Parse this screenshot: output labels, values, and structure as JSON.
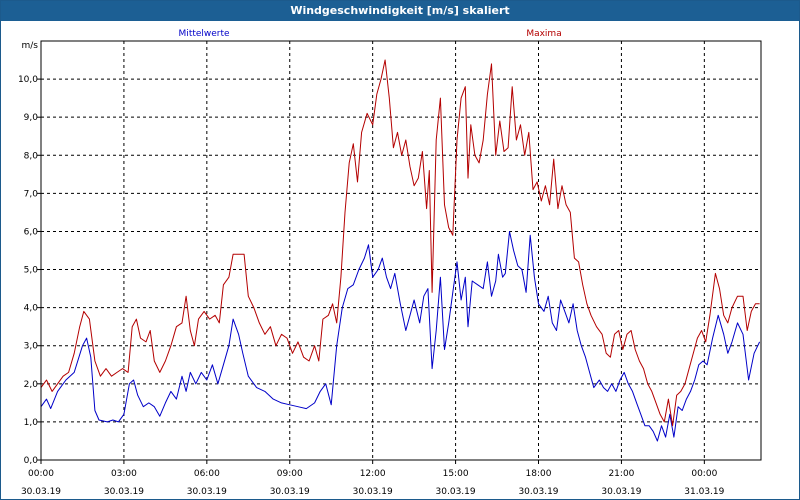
{
  "window": {
    "title": "Windgeschwindigkeit [m/s] skaliert"
  },
  "colors": {
    "series_mean": "#0000c8",
    "series_max": "#b40000",
    "grid": "#000000",
    "title_bg": "#1c5f94"
  },
  "chart_data": {
    "type": "line",
    "title": "Windgeschwindigkeit [m/s] skaliert",
    "ylabel": "m/s",
    "xlabel": "",
    "ylim": [
      0,
      11
    ],
    "xlim_hours": [
      0,
      24
    ],
    "grid": true,
    "yticks": [
      "0,0",
      "1,0",
      "2,0",
      "3,0",
      "4,0",
      "5,0",
      "6,0",
      "7,0",
      "8,0",
      "9,0",
      "10,0"
    ],
    "xticks": [
      {
        "time": "00:00",
        "date": "30.03.19"
      },
      {
        "time": "03:00",
        "date": "30.03.19"
      },
      {
        "time": "06:00",
        "date": "30.03.19"
      },
      {
        "time": "09:00",
        "date": "30.03.19"
      },
      {
        "time": "12:00",
        "date": "30.03.19"
      },
      {
        "time": "15:00",
        "date": "30.03.19"
      },
      {
        "time": "18:00",
        "date": "30.03.19"
      },
      {
        "time": "21:00",
        "date": "30.03.19"
      },
      {
        "time": "00:00",
        "date": "31.03.19"
      }
    ],
    "series": [
      {
        "name": "Mittelwerte",
        "points": [
          [
            0,
            1.4
          ],
          [
            0.2,
            1.6
          ],
          [
            0.35,
            1.35
          ],
          [
            0.6,
            1.8
          ],
          [
            0.9,
            2.1
          ],
          [
            1.2,
            2.3
          ],
          [
            1.5,
            3.0
          ],
          [
            1.65,
            3.2
          ],
          [
            1.8,
            2.7
          ],
          [
            1.95,
            1.3
          ],
          [
            2.1,
            1.05
          ],
          [
            2.4,
            1.0
          ],
          [
            2.6,
            1.05
          ],
          [
            2.8,
            1.0
          ],
          [
            3.0,
            1.2
          ],
          [
            3.2,
            2.0
          ],
          [
            3.35,
            2.1
          ],
          [
            3.5,
            1.7
          ],
          [
            3.7,
            1.4
          ],
          [
            3.9,
            1.5
          ],
          [
            4.1,
            1.4
          ],
          [
            4.3,
            1.15
          ],
          [
            4.5,
            1.5
          ],
          [
            4.7,
            1.8
          ],
          [
            4.9,
            1.6
          ],
          [
            5.1,
            2.2
          ],
          [
            5.25,
            1.8
          ],
          [
            5.4,
            2.3
          ],
          [
            5.6,
            2.0
          ],
          [
            5.8,
            2.3
          ],
          [
            6.0,
            2.1
          ],
          [
            6.2,
            2.5
          ],
          [
            6.4,
            2.0
          ],
          [
            6.6,
            2.5
          ],
          [
            6.8,
            3.0
          ],
          [
            6.95,
            3.7
          ],
          [
            7.15,
            3.3
          ],
          [
            7.3,
            2.8
          ],
          [
            7.5,
            2.2
          ],
          [
            7.8,
            1.9
          ],
          [
            8.1,
            1.8
          ],
          [
            8.4,
            1.6
          ],
          [
            8.7,
            1.5
          ],
          [
            9.0,
            1.45
          ],
          [
            9.3,
            1.4
          ],
          [
            9.6,
            1.35
          ],
          [
            9.9,
            1.5
          ],
          [
            10.1,
            1.8
          ],
          [
            10.3,
            2.0
          ],
          [
            10.5,
            1.45
          ],
          [
            10.7,
            3.0
          ],
          [
            10.9,
            4.0
          ],
          [
            11.1,
            4.5
          ],
          [
            11.3,
            4.6
          ],
          [
            11.5,
            5.0
          ],
          [
            11.7,
            5.3
          ],
          [
            11.85,
            5.65
          ],
          [
            12.0,
            4.8
          ],
          [
            12.2,
            5.0
          ],
          [
            12.35,
            5.3
          ],
          [
            12.5,
            4.8
          ],
          [
            12.65,
            4.5
          ],
          [
            12.8,
            4.9
          ],
          [
            13.0,
            4.1
          ],
          [
            13.2,
            3.4
          ],
          [
            13.35,
            3.8
          ],
          [
            13.5,
            4.2
          ],
          [
            13.7,
            3.6
          ],
          [
            13.85,
            4.3
          ],
          [
            14.0,
            4.5
          ],
          [
            14.15,
            2.4
          ],
          [
            14.3,
            3.4
          ],
          [
            14.45,
            4.8
          ],
          [
            14.6,
            2.9
          ],
          [
            14.75,
            3.6
          ],
          [
            14.9,
            4.4
          ],
          [
            15.05,
            5.2
          ],
          [
            15.2,
            4.2
          ],
          [
            15.35,
            4.8
          ],
          [
            15.45,
            3.5
          ],
          [
            15.6,
            4.7
          ],
          [
            15.8,
            4.6
          ],
          [
            16.0,
            4.5
          ],
          [
            16.15,
            5.2
          ],
          [
            16.3,
            4.3
          ],
          [
            16.45,
            4.7
          ],
          [
            16.55,
            5.4
          ],
          [
            16.7,
            4.8
          ],
          [
            16.8,
            4.9
          ],
          [
            16.95,
            6.0
          ],
          [
            17.1,
            5.5
          ],
          [
            17.25,
            5.1
          ],
          [
            17.4,
            5.0
          ],
          [
            17.55,
            4.4
          ],
          [
            17.7,
            5.9
          ],
          [
            17.85,
            4.8
          ],
          [
            18.0,
            4.1
          ],
          [
            18.2,
            3.9
          ],
          [
            18.35,
            4.3
          ],
          [
            18.5,
            3.6
          ],
          [
            18.65,
            3.4
          ],
          [
            18.8,
            4.2
          ],
          [
            18.95,
            3.9
          ],
          [
            19.1,
            3.6
          ],
          [
            19.25,
            4.1
          ],
          [
            19.4,
            3.4
          ],
          [
            19.55,
            3.0
          ],
          [
            19.7,
            2.7
          ],
          [
            19.85,
            2.3
          ],
          [
            20.0,
            1.9
          ],
          [
            20.2,
            2.1
          ],
          [
            20.35,
            1.9
          ],
          [
            20.5,
            1.8
          ],
          [
            20.65,
            2.0
          ],
          [
            20.8,
            1.8
          ],
          [
            20.95,
            2.1
          ],
          [
            21.1,
            2.3
          ],
          [
            21.25,
            2.0
          ],
          [
            21.4,
            1.8
          ],
          [
            21.55,
            1.5
          ],
          [
            21.7,
            1.2
          ],
          [
            21.85,
            0.9
          ],
          [
            22.0,
            0.9
          ],
          [
            22.15,
            0.75
          ],
          [
            22.3,
            0.5
          ],
          [
            22.45,
            0.9
          ],
          [
            22.6,
            0.6
          ],
          [
            22.75,
            1.2
          ],
          [
            22.9,
            0.6
          ],
          [
            23.05,
            1.4
          ],
          [
            23.2,
            1.3
          ],
          [
            23.35,
            1.6
          ],
          [
            23.5,
            1.8
          ],
          [
            23.65,
            2.1
          ],
          [
            23.8,
            2.5
          ],
          [
            23.95,
            2.6
          ],
          [
            24.1,
            2.5
          ],
          [
            24.3,
            3.2
          ],
          [
            24.5,
            3.8
          ],
          [
            24.7,
            3.3
          ],
          [
            24.85,
            2.8
          ],
          [
            25.0,
            3.1
          ],
          [
            25.2,
            3.6
          ],
          [
            25.4,
            3.3
          ],
          [
            25.6,
            2.1
          ],
          [
            25.8,
            2.8
          ],
          [
            26.0,
            3.1
          ]
        ]
      },
      {
        "name": "Maxima",
        "points": [
          [
            0,
            1.9
          ],
          [
            0.2,
            2.1
          ],
          [
            0.4,
            1.8
          ],
          [
            0.6,
            2.0
          ],
          [
            0.8,
            2.2
          ],
          [
            1.0,
            2.3
          ],
          [
            1.2,
            2.8
          ],
          [
            1.4,
            3.5
          ],
          [
            1.55,
            3.9
          ],
          [
            1.75,
            3.7
          ],
          [
            1.95,
            2.6
          ],
          [
            2.15,
            2.2
          ],
          [
            2.35,
            2.4
          ],
          [
            2.55,
            2.2
          ],
          [
            2.75,
            2.3
          ],
          [
            2.95,
            2.4
          ],
          [
            3.15,
            2.3
          ],
          [
            3.3,
            3.5
          ],
          [
            3.45,
            3.7
          ],
          [
            3.6,
            3.2
          ],
          [
            3.8,
            3.1
          ],
          [
            3.95,
            3.4
          ],
          [
            4.1,
            2.6
          ],
          [
            4.3,
            2.3
          ],
          [
            4.5,
            2.6
          ],
          [
            4.7,
            3.0
          ],
          [
            4.9,
            3.5
          ],
          [
            5.1,
            3.6
          ],
          [
            5.25,
            4.3
          ],
          [
            5.4,
            3.4
          ],
          [
            5.55,
            3.0
          ],
          [
            5.7,
            3.7
          ],
          [
            5.9,
            3.9
          ],
          [
            6.1,
            3.7
          ],
          [
            6.3,
            3.8
          ],
          [
            6.45,
            3.6
          ],
          [
            6.6,
            4.6
          ],
          [
            6.8,
            4.8
          ],
          [
            6.95,
            5.4
          ],
          [
            7.15,
            5.4
          ],
          [
            7.35,
            5.4
          ],
          [
            7.5,
            4.3
          ],
          [
            7.7,
            4.0
          ],
          [
            7.9,
            3.6
          ],
          [
            8.1,
            3.3
          ],
          [
            8.3,
            3.5
          ],
          [
            8.5,
            3.0
          ],
          [
            8.7,
            3.3
          ],
          [
            8.9,
            3.2
          ],
          [
            9.1,
            2.8
          ],
          [
            9.3,
            3.1
          ],
          [
            9.5,
            2.7
          ],
          [
            9.7,
            2.6
          ],
          [
            9.9,
            3.0
          ],
          [
            10.05,
            2.6
          ],
          [
            10.2,
            3.7
          ],
          [
            10.4,
            3.8
          ],
          [
            10.55,
            4.1
          ],
          [
            10.7,
            3.6
          ],
          [
            10.85,
            4.8
          ],
          [
            11.0,
            6.5
          ],
          [
            11.15,
            7.8
          ],
          [
            11.3,
            8.3
          ],
          [
            11.45,
            7.3
          ],
          [
            11.6,
            8.6
          ],
          [
            11.8,
            9.1
          ],
          [
            12.0,
            8.8
          ],
          [
            12.15,
            9.6
          ],
          [
            12.3,
            10.0
          ],
          [
            12.45,
            10.5
          ],
          [
            12.6,
            9.5
          ],
          [
            12.75,
            8.2
          ],
          [
            12.9,
            8.6
          ],
          [
            13.05,
            8.0
          ],
          [
            13.2,
            8.4
          ],
          [
            13.35,
            7.7
          ],
          [
            13.5,
            7.2
          ],
          [
            13.65,
            7.4
          ],
          [
            13.8,
            8.1
          ],
          [
            13.95,
            6.6
          ],
          [
            14.05,
            7.6
          ],
          [
            14.15,
            4.4
          ],
          [
            14.3,
            8.4
          ],
          [
            14.45,
            9.5
          ],
          [
            14.6,
            6.7
          ],
          [
            14.75,
            6.1
          ],
          [
            14.9,
            5.9
          ],
          [
            15.05,
            8.4
          ],
          [
            15.2,
            9.5
          ],
          [
            15.35,
            9.8
          ],
          [
            15.45,
            7.4
          ],
          [
            15.55,
            8.8
          ],
          [
            15.7,
            8.0
          ],
          [
            15.85,
            7.8
          ],
          [
            16.0,
            8.4
          ],
          [
            16.15,
            9.6
          ],
          [
            16.3,
            10.4
          ],
          [
            16.45,
            8.0
          ],
          [
            16.6,
            8.9
          ],
          [
            16.75,
            8.1
          ],
          [
            16.9,
            8.2
          ],
          [
            17.05,
            9.8
          ],
          [
            17.2,
            8.4
          ],
          [
            17.35,
            8.8
          ],
          [
            17.5,
            8.0
          ],
          [
            17.65,
            8.6
          ],
          [
            17.8,
            7.1
          ],
          [
            17.95,
            7.3
          ],
          [
            18.1,
            6.8
          ],
          [
            18.25,
            7.2
          ],
          [
            18.4,
            6.7
          ],
          [
            18.55,
            7.9
          ],
          [
            18.7,
            6.6
          ],
          [
            18.85,
            7.2
          ],
          [
            19.0,
            6.7
          ],
          [
            19.15,
            6.5
          ],
          [
            19.3,
            5.3
          ],
          [
            19.45,
            5.2
          ],
          [
            19.6,
            4.6
          ],
          [
            19.75,
            4.1
          ],
          [
            19.9,
            3.8
          ],
          [
            20.1,
            3.5
          ],
          [
            20.3,
            3.3
          ],
          [
            20.45,
            2.8
          ],
          [
            20.6,
            2.7
          ],
          [
            20.75,
            3.3
          ],
          [
            20.9,
            3.4
          ],
          [
            21.05,
            2.9
          ],
          [
            21.2,
            3.3
          ],
          [
            21.35,
            3.4
          ],
          [
            21.5,
            2.9
          ],
          [
            21.65,
            2.6
          ],
          [
            21.8,
            2.4
          ],
          [
            21.95,
            2.0
          ],
          [
            22.1,
            1.8
          ],
          [
            22.25,
            1.5
          ],
          [
            22.4,
            1.2
          ],
          [
            22.55,
            1.0
          ],
          [
            22.7,
            1.6
          ],
          [
            22.85,
            0.9
          ],
          [
            23.0,
            1.7
          ],
          [
            23.15,
            1.8
          ],
          [
            23.3,
            2.0
          ],
          [
            23.45,
            2.4
          ],
          [
            23.6,
            2.8
          ],
          [
            23.75,
            3.2
          ],
          [
            23.9,
            3.4
          ],
          [
            24.05,
            3.1
          ],
          [
            24.2,
            3.8
          ],
          [
            24.4,
            4.9
          ],
          [
            24.55,
            4.5
          ],
          [
            24.7,
            3.8
          ],
          [
            24.85,
            3.6
          ],
          [
            25.0,
            4.0
          ],
          [
            25.2,
            4.3
          ],
          [
            25.4,
            4.3
          ],
          [
            25.55,
            3.4
          ],
          [
            25.7,
            3.9
          ],
          [
            25.85,
            4.1
          ],
          [
            26.0,
            4.1
          ]
        ]
      }
    ]
  }
}
